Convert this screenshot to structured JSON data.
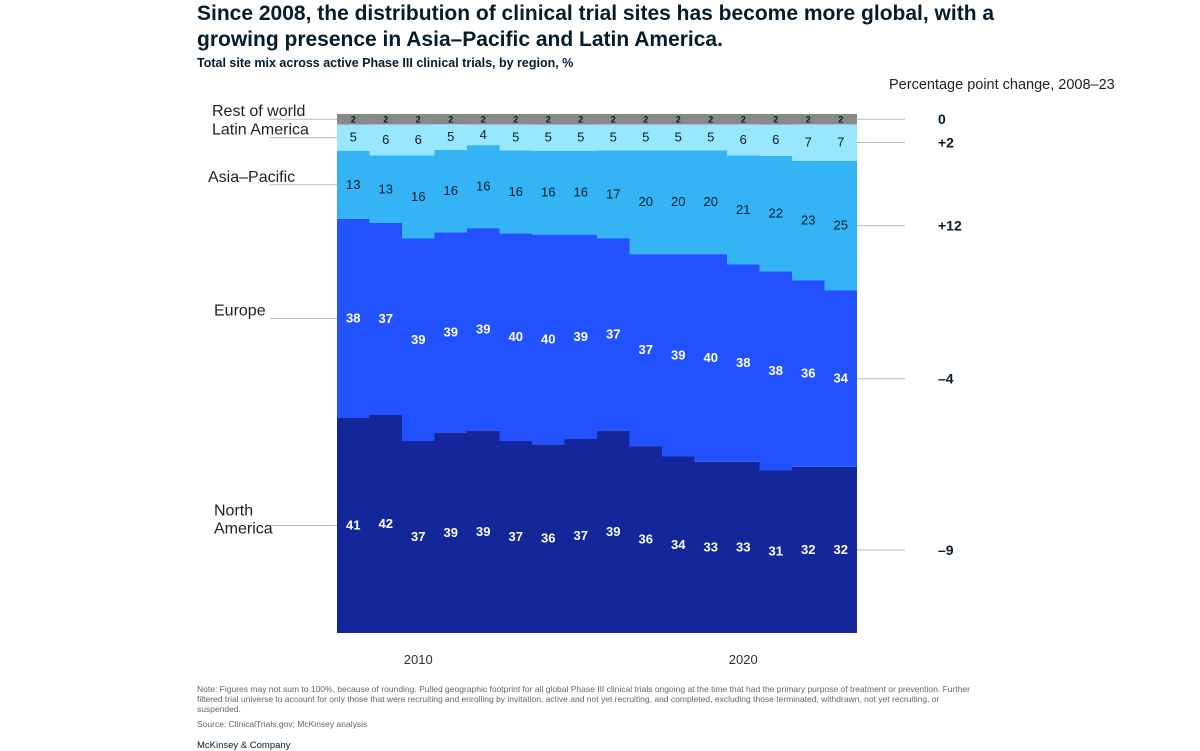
{
  "title": "Since 2008, the distribution of clinical trial sites has become more global, with a growing presence in Asia–Pacific and Latin America.",
  "subtitle": "Total site mix across active Phase III clinical trials, by region, %",
  "change_header": "Percentage point change, 2008–23",
  "footnote": "Note: Figures may not sum to 100%, because of rounding. Pulled geographic footprint for all global Phase III clinical trials ongoing at the time that had the primary purpose of treatment or prevention. Further filtered trial universe to account for only those that were recruiting and enrolling by invitation, active and not yet recruiting, and completed, excluding those terminated, withdrawn, not yet recruiting, or suspended.",
  "source": "Source: ClinicalTrials.gov; McKinsey analysis",
  "brand": "McKinsey & Company",
  "chart_data": {
    "type": "area",
    "stacked": true,
    "unit": "%",
    "x": [
      2008,
      2009,
      2010,
      2011,
      2012,
      2013,
      2014,
      2015,
      2016,
      2017,
      2018,
      2019,
      2020,
      2021,
      2022,
      2023
    ],
    "x_tick_labels": [
      "2010",
      "2020"
    ],
    "x_tick_values": [
      2010,
      2020
    ],
    "ylim": [
      0,
      100
    ],
    "series": [
      {
        "name": "North America",
        "color": "#13279a",
        "text_color": "#ffffff",
        "bold": true,
        "change": "–9",
        "values": [
          41,
          42,
          37,
          39,
          39,
          37,
          36,
          37,
          39,
          36,
          34,
          33,
          33,
          31,
          32,
          32
        ]
      },
      {
        "name": "Europe",
        "color": "#2251ff",
        "text_color": "#ffffff",
        "bold": true,
        "change": "–4",
        "values": [
          38,
          37,
          39,
          39,
          39,
          40,
          40,
          39,
          37,
          37,
          39,
          40,
          38,
          38,
          36,
          34
        ]
      },
      {
        "name": "Asia–Pacific",
        "color": "#34b4f5",
        "text_color": "#051c2c",
        "bold": false,
        "change": "+12",
        "values": [
          13,
          13,
          16,
          16,
          16,
          16,
          16,
          16,
          17,
          20,
          20,
          20,
          21,
          22,
          23,
          25
        ]
      },
      {
        "name": "Latin America",
        "color": "#99e6ff",
        "text_color": "#051c2c",
        "bold": false,
        "change": "+2",
        "values": [
          5,
          6,
          6,
          5,
          4,
          5,
          5,
          5,
          5,
          5,
          5,
          5,
          6,
          6,
          7,
          7
        ]
      },
      {
        "name": "Rest of world",
        "color": "#888888",
        "text_color": "#051c2c",
        "bold": true,
        "change": "0",
        "values": [
          2,
          2,
          2,
          2,
          2,
          2,
          2,
          2,
          2,
          2,
          2,
          2,
          2,
          2,
          2,
          2
        ]
      }
    ]
  }
}
